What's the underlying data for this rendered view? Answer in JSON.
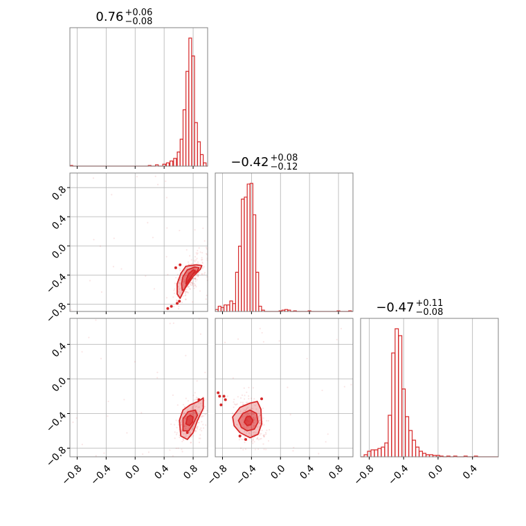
{
  "chart_data": {
    "type": "corner",
    "color": "#d62728",
    "grid": true,
    "axis_range": [
      -0.9,
      1.0
    ],
    "axis_range_third": [
      -0.9,
      0.7
    ],
    "ticks": {
      "p12": [
        {
          "v": -0.8,
          "label": "−0.8"
        },
        {
          "v": -0.4,
          "label": "−0.4"
        },
        {
          "v": 0.0,
          "label": "0.0"
        },
        {
          "v": 0.4,
          "label": "0.4"
        },
        {
          "v": 0.8,
          "label": "0.8"
        }
      ],
      "p3": [
        {
          "v": -0.8,
          "label": "−0.8"
        },
        {
          "v": -0.4,
          "label": "−0.4"
        },
        {
          "v": 0.0,
          "label": "0.0"
        },
        {
          "v": 0.4,
          "label": "0.4"
        }
      ]
    },
    "titles": [
      {
        "median": "0.76",
        "plus": "+0.06",
        "minus": "−0.08"
      },
      {
        "median": "−0.42",
        "plus": "+0.08",
        "minus": "−0.12"
      },
      {
        "median": "−0.47",
        "plus": "+0.11",
        "minus": "−0.08"
      }
    ],
    "histograms": [
      {
        "param": 1,
        "bin_width": 0.038,
        "counts": [
          {
            "x": -0.88,
            "c": 1
          },
          {
            "x": 0.2,
            "c": 1
          },
          {
            "x": 0.3,
            "c": 2
          },
          {
            "x": 0.4,
            "c": 3
          },
          {
            "x": 0.45,
            "c": 5
          },
          {
            "x": 0.5,
            "c": 8
          },
          {
            "x": 0.55,
            "c": 12
          },
          {
            "x": 0.6,
            "c": 22
          },
          {
            "x": 0.64,
            "c": 42
          },
          {
            "x": 0.68,
            "c": 88
          },
          {
            "x": 0.72,
            "c": 148
          },
          {
            "x": 0.76,
            "c": 200
          },
          {
            "x": 0.8,
            "c": 172
          },
          {
            "x": 0.84,
            "c": 68
          },
          {
            "x": 0.88,
            "c": 38
          },
          {
            "x": 0.92,
            "c": 18
          },
          {
            "x": 0.96,
            "c": 5
          }
        ]
      },
      {
        "param": 2,
        "bin_width": 0.038,
        "counts": [
          {
            "x": -0.88,
            "c": 3
          },
          {
            "x": -0.84,
            "c": 8
          },
          {
            "x": -0.8,
            "c": 6
          },
          {
            "x": -0.76,
            "c": 10
          },
          {
            "x": -0.72,
            "c": 10
          },
          {
            "x": -0.68,
            "c": 16
          },
          {
            "x": -0.64,
            "c": 12
          },
          {
            "x": -0.6,
            "c": 60
          },
          {
            "x": -0.56,
            "c": 100
          },
          {
            "x": -0.52,
            "c": 172
          },
          {
            "x": -0.48,
            "c": 175
          },
          {
            "x": -0.44,
            "c": 195
          },
          {
            "x": -0.4,
            "c": 196
          },
          {
            "x": -0.36,
            "c": 148
          },
          {
            "x": -0.32,
            "c": 60
          },
          {
            "x": -0.28,
            "c": 8
          },
          {
            "x": -0.24,
            "c": 2
          },
          {
            "x": 0.0,
            "c": 1
          },
          {
            "x": 0.04,
            "c": 2
          },
          {
            "x": 0.08,
            "c": 3
          },
          {
            "x": 0.12,
            "c": 2
          },
          {
            "x": 0.2,
            "c": 1
          },
          {
            "x": 0.4,
            "c": 1
          },
          {
            "x": 0.8,
            "c": 1
          },
          {
            "x": 0.96,
            "c": 1
          }
        ]
      },
      {
        "param": 3,
        "bin_width": 0.038,
        "counts": [
          {
            "x": -0.84,
            "c": 3
          },
          {
            "x": -0.8,
            "c": 8
          },
          {
            "x": -0.76,
            "c": 10
          },
          {
            "x": -0.72,
            "c": 10
          },
          {
            "x": -0.68,
            "c": 12
          },
          {
            "x": -0.64,
            "c": 14
          },
          {
            "x": -0.6,
            "c": 20
          },
          {
            "x": -0.56,
            "c": 60
          },
          {
            "x": -0.52,
            "c": 150
          },
          {
            "x": -0.48,
            "c": 185
          },
          {
            "x": -0.44,
            "c": 175
          },
          {
            "x": -0.4,
            "c": 98
          },
          {
            "x": -0.36,
            "c": 58
          },
          {
            "x": -0.32,
            "c": 38
          },
          {
            "x": -0.28,
            "c": 24
          },
          {
            "x": -0.24,
            "c": 14
          },
          {
            "x": -0.2,
            "c": 8
          },
          {
            "x": -0.16,
            "c": 5
          },
          {
            "x": -0.12,
            "c": 3
          },
          {
            "x": -0.08,
            "c": 3
          },
          {
            "x": -0.04,
            "c": 2
          },
          {
            "x": 0.0,
            "c": 2
          },
          {
            "x": 0.04,
            "c": 1
          },
          {
            "x": 0.12,
            "c": 1
          },
          {
            "x": 0.2,
            "c": 1
          },
          {
            "x": 0.32,
            "c": 1
          },
          {
            "x": 0.44,
            "c": 1
          }
        ]
      }
    ],
    "pairs": [
      {
        "x_param": 1,
        "y_param": 2,
        "center": [
          0.76,
          -0.43
        ],
        "levels": [
          [
            [
              0.73,
              -0.52
            ],
            [
              0.76,
              -0.45
            ],
            [
              0.8,
              -0.38
            ],
            [
              0.83,
              -0.34
            ],
            [
              0.8,
              -0.33
            ],
            [
              0.74,
              -0.38
            ],
            [
              0.71,
              -0.45
            ],
            [
              0.7,
              -0.52
            ]
          ],
          [
            [
              0.68,
              -0.6
            ],
            [
              0.73,
              -0.48
            ],
            [
              0.79,
              -0.4
            ],
            [
              0.86,
              -0.34
            ],
            [
              0.88,
              -0.3
            ],
            [
              0.82,
              -0.29
            ],
            [
              0.72,
              -0.33
            ],
            [
              0.66,
              -0.42
            ],
            [
              0.64,
              -0.52
            ],
            [
              0.65,
              -0.61
            ]
          ],
          [
            [
              0.62,
              -0.72
            ],
            [
              0.69,
              -0.58
            ],
            [
              0.8,
              -0.42
            ],
            [
              0.9,
              -0.32
            ],
            [
              0.92,
              -0.27
            ],
            [
              0.84,
              -0.26
            ],
            [
              0.7,
              -0.28
            ],
            [
              0.63,
              -0.38
            ],
            [
              0.58,
              -0.52
            ],
            [
              0.58,
              -0.66
            ]
          ]
        ],
        "dots": [
          [
            0.61,
            -0.76
          ],
          [
            0.58,
            -0.79
          ],
          [
            0.5,
            -0.83
          ],
          [
            0.45,
            -0.86
          ],
          [
            0.62,
            -0.26
          ],
          [
            0.56,
            -0.3
          ]
        ]
      },
      {
        "x_param": 1,
        "y_param": 3,
        "center": [
          0.76,
          -0.48
        ],
        "levels": [
          [
            [
              0.7,
              -0.52
            ],
            [
              0.72,
              -0.44
            ],
            [
              0.76,
              -0.42
            ],
            [
              0.8,
              -0.44
            ],
            [
              0.79,
              -0.5
            ],
            [
              0.75,
              -0.54
            ]
          ],
          [
            [
              0.66,
              -0.6
            ],
            [
              0.66,
              -0.46
            ],
            [
              0.73,
              -0.38
            ],
            [
              0.83,
              -0.36
            ],
            [
              0.86,
              -0.42
            ],
            [
              0.8,
              -0.52
            ],
            [
              0.74,
              -0.6
            ]
          ],
          [
            [
              0.63,
              -0.66
            ],
            [
              0.61,
              -0.48
            ],
            [
              0.66,
              -0.36
            ],
            [
              0.76,
              -0.3
            ],
            [
              0.87,
              -0.26
            ],
            [
              0.94,
              -0.22
            ],
            [
              0.94,
              -0.34
            ],
            [
              0.86,
              -0.48
            ],
            [
              0.8,
              -0.62
            ],
            [
              0.72,
              -0.7
            ]
          ]
        ],
        "dots": [
          [
            0.72,
            -0.62
          ],
          [
            0.88,
            -0.24
          ]
        ]
      },
      {
        "x_param": 2,
        "y_param": 3,
        "center": [
          -0.42,
          -0.48
        ],
        "levels": [
          [
            [
              -0.5,
              -0.5
            ],
            [
              -0.47,
              -0.44
            ],
            [
              -0.42,
              -0.43
            ],
            [
              -0.38,
              -0.48
            ],
            [
              -0.41,
              -0.53
            ],
            [
              -0.46,
              -0.54
            ]
          ],
          [
            [
              -0.58,
              -0.48
            ],
            [
              -0.52,
              -0.4
            ],
            [
              -0.42,
              -0.36
            ],
            [
              -0.33,
              -0.4
            ],
            [
              -0.31,
              -0.5
            ],
            [
              -0.36,
              -0.58
            ],
            [
              -0.46,
              -0.6
            ],
            [
              -0.54,
              -0.56
            ]
          ],
          [
            [
              -0.66,
              -0.44
            ],
            [
              -0.56,
              -0.33
            ],
            [
              -0.42,
              -0.28
            ],
            [
              -0.32,
              -0.26
            ],
            [
              -0.27,
              -0.35
            ],
            [
              -0.26,
              -0.52
            ],
            [
              -0.31,
              -0.64
            ],
            [
              -0.42,
              -0.68
            ],
            [
              -0.56,
              -0.62
            ],
            [
              -0.64,
              -0.54
            ]
          ]
        ],
        "dots": [
          [
            -0.86,
            -0.16
          ],
          [
            -0.84,
            -0.2
          ],
          [
            -0.78,
            -0.2
          ],
          [
            -0.76,
            -0.24
          ],
          [
            -0.82,
            -0.3
          ],
          [
            -0.56,
            -0.66
          ],
          [
            -0.48,
            -0.7
          ],
          [
            -0.26,
            -0.23
          ]
        ]
      }
    ]
  }
}
